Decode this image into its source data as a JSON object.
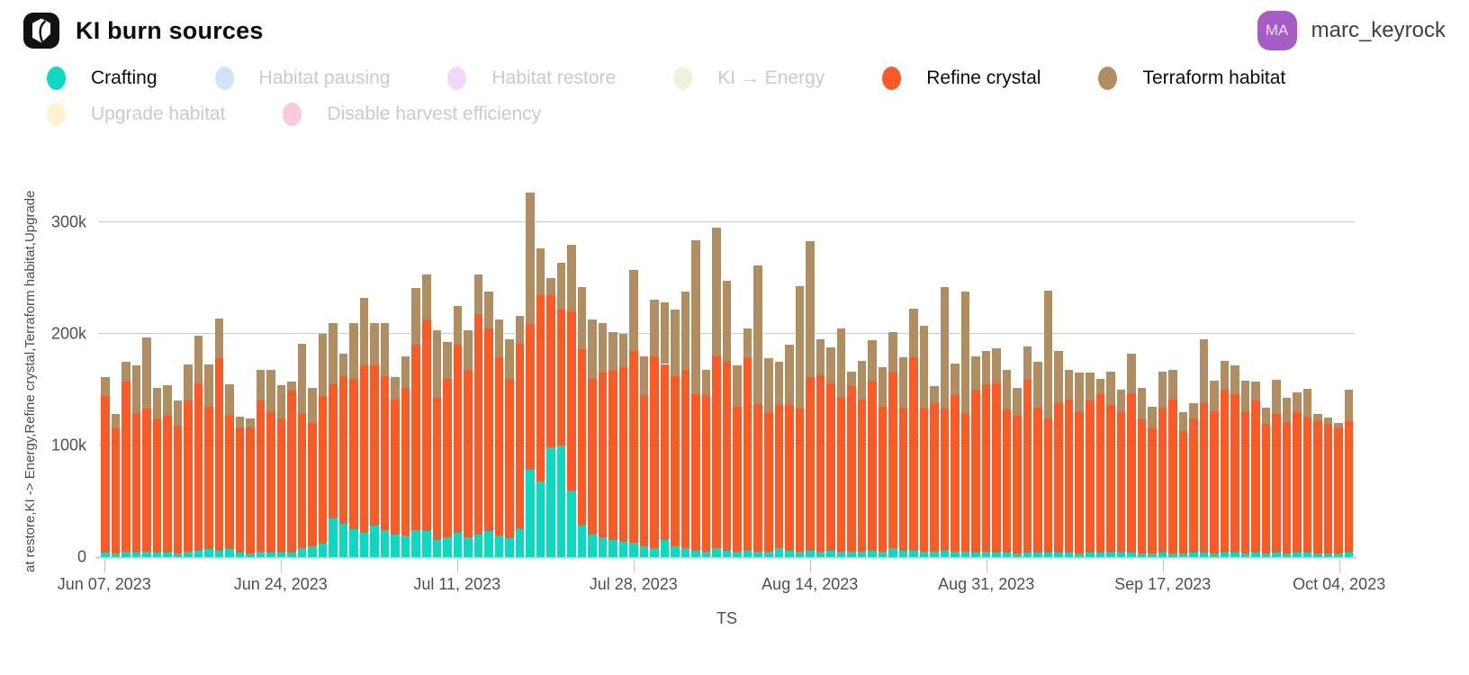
{
  "header": {
    "title": "KI burn sources",
    "user": {
      "initials": "MA",
      "name": "marc_keyrock"
    }
  },
  "colors": {
    "avatar_bg": "#a55cc5",
    "avatar_text": "#ecdcf5",
    "legend_disabled_text": "#c9c9ce",
    "gridline": "#c8c8c8",
    "axis_text": "#4e4f54"
  },
  "legend": {
    "row_breaks": [
      6
    ]
  },
  "chart_data": {
    "type": "bar",
    "stacked": true,
    "title": "KI burn sources",
    "xlabel": "TS",
    "ylabel_truncated": "at restore,KI -> Energy,Refine crystal,Terraform habitat,Upgrade",
    "legend_position": "top",
    "grid": "horizontal",
    "n_bars": 121,
    "value_unit": 1000,
    "ylim_k": [
      0,
      375
    ],
    "yticks": [
      {
        "v": 0,
        "label": "0"
      },
      {
        "v": 100,
        "label": "100k"
      },
      {
        "v": 200,
        "label": "200k"
      },
      {
        "v": 300,
        "label": "300k"
      }
    ],
    "x_ticks": [
      {
        "i": 0,
        "label": "Jun 07, 2023"
      },
      {
        "i": 17,
        "label": "Jun 24, 2023"
      },
      {
        "i": 34,
        "label": "Jul 11, 2023"
      },
      {
        "i": 51,
        "label": "Jul 28, 2023"
      },
      {
        "i": 68,
        "label": "Aug 14, 2023"
      },
      {
        "i": 85,
        "label": "Aug 31, 2023"
      },
      {
        "i": 102,
        "label": "Sep 17, 2023"
      },
      {
        "i": 119,
        "label": "Oct 04, 2023"
      }
    ],
    "series": [
      {
        "name": "Crafting",
        "color": "#0cd9c0",
        "enabled": true,
        "values_k": [
          4,
          3,
          5,
          4,
          5,
          4,
          4,
          3,
          5,
          6,
          7,
          6,
          7,
          4,
          3,
          5,
          4,
          4,
          4,
          8,
          10,
          12,
          35,
          30,
          25,
          22,
          28,
          24,
          20,
          19,
          24,
          23,
          15,
          18,
          22,
          18,
          20,
          23,
          19,
          17,
          25,
          78,
          68,
          98,
          100,
          60,
          28,
          20,
          18,
          15,
          14,
          13,
          10,
          8,
          15,
          10,
          8,
          6,
          5,
          8,
          6,
          5,
          6,
          5,
          5,
          8,
          6,
          5,
          6,
          5,
          6,
          5,
          5,
          5,
          6,
          5,
          8,
          6,
          6,
          5,
          5,
          6,
          5,
          5,
          4,
          5,
          4,
          4,
          3,
          4,
          4,
          4,
          4,
          4,
          3,
          4,
          4,
          4,
          4,
          4,
          3,
          3,
          4,
          3,
          3,
          4,
          4,
          3,
          4,
          4,
          3,
          4,
          3,
          4,
          3,
          4,
          4,
          3,
          3,
          3,
          4
        ]
      },
      {
        "name": "Habitat pausing",
        "color": "#cfe4fb",
        "enabled": false
      },
      {
        "name": "Habitat restore",
        "color": "#f5d7fb",
        "enabled": false
      },
      {
        "name": "KI → Energy",
        "color": "#eaf4dc",
        "enabled": false
      },
      {
        "name": "Refine crystal",
        "color": "#fa5b26",
        "enabled": true,
        "values_k": [
          140,
          112,
          152,
          125,
          128,
          120,
          123,
          115,
          135,
          150,
          128,
          172,
          120,
          112,
          113,
          135,
          127,
          120,
          145,
          120,
          110,
          132,
          120,
          132,
          135,
          150,
          144,
          138,
          121,
          133,
          166,
          190,
          128,
          142,
          168,
          150,
          198,
          182,
          160,
          143,
          166,
          131,
          167,
          137,
          122,
          160,
          158,
          140,
          147,
          152,
          156,
          172,
          135,
          172,
          158,
          152,
          160,
          140,
          140,
          172,
          170,
          130,
          172,
          132,
          125,
          128,
          130,
          128,
          155,
          158,
          150,
          138,
          148,
          136,
          152,
          130,
          158,
          128,
          173,
          128,
          133,
          127,
          140,
          124,
          146,
          150,
          152,
          128,
          124,
          155,
          130,
          120,
          134,
          137,
          128,
          136,
          142,
          132,
          126,
          143,
          120,
          112,
          130,
          138,
          110,
          120,
          135,
          128,
          146,
          142,
          128,
          136,
          116,
          124,
          118,
          126,
          122,
          119,
          116,
          112,
          118
        ]
      },
      {
        "name": "Terraform habitat",
        "color": "#b08e62",
        "enabled": true,
        "values_k": [
          17,
          13,
          18,
          43,
          64,
          28,
          27,
          22,
          33,
          42,
          38,
          36,
          28,
          10,
          8,
          28,
          37,
          30,
          8,
          63,
          32,
          56,
          55,
          20,
          50,
          60,
          38,
          48,
          20,
          28,
          51,
          40,
          60,
          33,
          35,
          35,
          35,
          33,
          34,
          35,
          25,
          118,
          42,
          15,
          42,
          60,
          56,
          53,
          45,
          35,
          30,
          72,
          35,
          51,
          55,
          60,
          70,
          138,
          23,
          115,
          72,
          37,
          27,
          124,
          48,
          39,
          54,
          110,
          122,
          32,
          32,
          62,
          13,
          35,
          36,
          35,
          36,
          45,
          44,
          74,
          15,
          109,
          28,
          109,
          30,
          30,
          31,
          36,
          25,
          30,
          41,
          115,
          47,
          27,
          34,
          25,
          14,
          30,
          20,
          35,
          29,
          20,
          32,
          27,
          17,
          14,
          56,
          27,
          26,
          26,
          27,
          17,
          15,
          31,
          22,
          18,
          25,
          6,
          6,
          5,
          28
        ]
      },
      {
        "name": "Upgrade habitat",
        "color": "#fdf4cf",
        "enabled": false
      },
      {
        "name": "Disable harvest efficiency",
        "color": "#fbc9d8",
        "enabled": false
      }
    ]
  }
}
